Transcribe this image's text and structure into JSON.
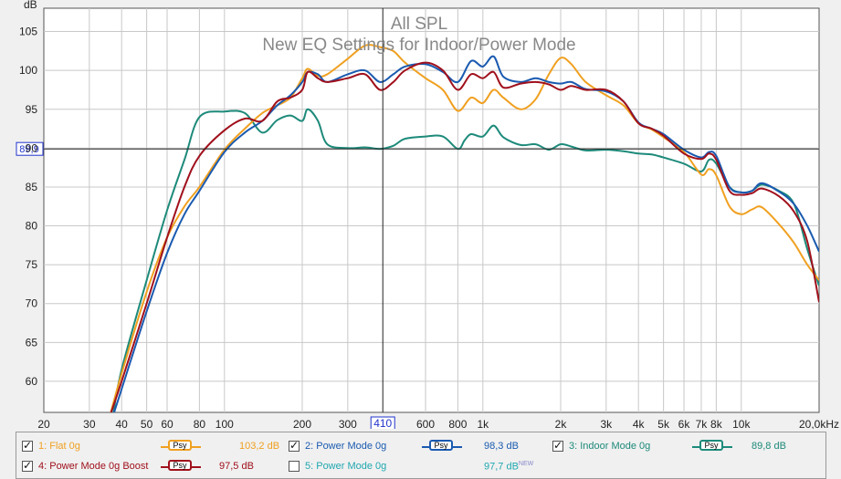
{
  "chart_data": {
    "type": "line",
    "title": "All SPL",
    "subtitle": "New EQ Settings for Indoor/Power Mode",
    "ylabel": "dB",
    "xlabel": "Hz",
    "xscale": "log",
    "xlim": [
      20,
      20000
    ],
    "ylim": [
      56,
      108
    ],
    "x_ticks": [
      {
        "v": 20,
        "label": "20"
      },
      {
        "v": 30,
        "label": "30"
      },
      {
        "v": 40,
        "label": "40"
      },
      {
        "v": 50,
        "label": "50"
      },
      {
        "v": 60,
        "label": "60"
      },
      {
        "v": 80,
        "label": "80"
      },
      {
        "v": 100,
        "label": "100"
      },
      {
        "v": 200,
        "label": "200"
      },
      {
        "v": 300,
        "label": "300"
      },
      {
        "v": 600,
        "label": "600"
      },
      {
        "v": 800,
        "label": "800"
      },
      {
        "v": 1000,
        "label": "1k"
      },
      {
        "v": 2000,
        "label": "2k"
      },
      {
        "v": 3000,
        "label": "3k"
      },
      {
        "v": 4000,
        "label": "4k"
      },
      {
        "v": 5000,
        "label": "5k"
      },
      {
        "v": 6000,
        "label": "6k"
      },
      {
        "v": 7000,
        "label": "7k"
      },
      {
        "v": 8000,
        "label": "8k"
      },
      {
        "v": 10000,
        "label": "10k"
      },
      {
        "v": 20000,
        "label": "20,0kHz"
      }
    ],
    "y_ticks": [
      60,
      65,
      70,
      75,
      80,
      85,
      90,
      95,
      100,
      105
    ],
    "cursor": {
      "x": 410,
      "x_label": "410",
      "y": 89.9,
      "y_label": "89,9"
    },
    "series": [
      {
        "name": "1: Flat 0g",
        "color": "#f0a020",
        "x": [
          36,
          40,
          50,
          60,
          70,
          80,
          100,
          120,
          140,
          160,
          180,
          200,
          210,
          230,
          250,
          300,
          350,
          400,
          450,
          500,
          600,
          700,
          800,
          900,
          1000,
          1100,
          1200,
          1400,
          1600,
          1800,
          2000,
          2200,
          2500,
          3000,
          3500,
          4000,
          4500,
          5000,
          6000,
          7000,
          7500,
          8000,
          9000,
          10000,
          11000,
          12000,
          14000,
          16000,
          18000,
          20000
        ],
        "y": [
          55.5,
          61,
          71.5,
          78.5,
          82.5,
          85,
          89.8,
          92.5,
          94.5,
          95.5,
          96.5,
          99,
          100.2,
          99.3,
          99.5,
          101.5,
          103.2,
          103,
          102.5,
          101,
          99,
          97.5,
          94.8,
          96.5,
          95.8,
          97.5,
          96.5,
          95,
          96.3,
          99.5,
          101.6,
          100.8,
          98.5,
          96.8,
          95.5,
          93.2,
          92.4,
          91.4,
          89.5,
          86.6,
          87.3,
          86.5,
          82.5,
          81.5,
          82.1,
          82.4,
          80.2,
          77.8,
          75,
          73
        ]
      },
      {
        "name": "2: Power Mode 0g",
        "color": "#1a5ab0",
        "x": [
          37,
          40,
          50,
          60,
          70,
          80,
          100,
          120,
          140,
          160,
          180,
          200,
          210,
          230,
          250,
          300,
          350,
          400,
          450,
          500,
          600,
          700,
          800,
          900,
          1000,
          1100,
          1200,
          1400,
          1600,
          1800,
          2000,
          2200,
          2500,
          3000,
          3500,
          4000,
          4500,
          5000,
          6000,
          7000,
          7500,
          8000,
          9000,
          10000,
          11000,
          12000,
          14000,
          16000,
          18000,
          20000
        ],
        "y": [
          55.5,
          59,
          69,
          76.5,
          81.5,
          84.5,
          89.5,
          92,
          93.5,
          95.5,
          96.8,
          98.5,
          99.8,
          99.5,
          98.5,
          99.5,
          100,
          98.5,
          99.5,
          100.5,
          100.8,
          99.8,
          98.5,
          101.2,
          100.5,
          101.8,
          99.2,
          98.5,
          99,
          98.5,
          98.3,
          98.5,
          97.6,
          97.3,
          96,
          93.3,
          92.5,
          91.8,
          89.8,
          88.8,
          89.5,
          89,
          85,
          84.3,
          84.5,
          85.5,
          84.4,
          82.8,
          80,
          76.7
        ]
      },
      {
        "name": "3: Indoor Mode 0g",
        "color": "#1d8a7a",
        "x": [
          37,
          40,
          50,
          60,
          70,
          80,
          100,
          120,
          140,
          160,
          180,
          200,
          210,
          230,
          250,
          300,
          350,
          400,
          450,
          500,
          600,
          700,
          800,
          850,
          900,
          1000,
          1100,
          1200,
          1400,
          1600,
          1800,
          2000,
          2200,
          2500,
          3000,
          3500,
          4000,
          4500,
          5000,
          6000,
          7000,
          7500,
          8000,
          9000,
          10000,
          11000,
          12000,
          14000,
          16000,
          18000,
          20000
        ],
        "y": [
          55.5,
          61.5,
          73,
          82,
          88.5,
          94,
          94.7,
          94.5,
          92,
          93.6,
          94.2,
          93.5,
          95,
          93.5,
          90.5,
          90,
          90.1,
          89.9,
          90.3,
          91.2,
          91.5,
          91.5,
          89.9,
          91,
          91.8,
          91.5,
          92.9,
          91.4,
          90.4,
          90.5,
          89.8,
          90.5,
          90.2,
          89.7,
          89.8,
          89.6,
          89.3,
          89.2,
          88.8,
          88,
          87,
          88.5,
          88,
          85,
          84.3,
          84.5,
          85.3,
          84.5,
          82.8,
          77,
          72.3
        ]
      },
      {
        "name": "4: Power Mode 0g Boost",
        "color": "#a0101c",
        "x": [
          36,
          40,
          50,
          60,
          70,
          80,
          100,
          120,
          140,
          160,
          180,
          200,
          210,
          230,
          250,
          300,
          350,
          400,
          450,
          500,
          600,
          700,
          800,
          900,
          1000,
          1100,
          1200,
          1400,
          1600,
          1800,
          2000,
          2200,
          2500,
          3000,
          3500,
          4000,
          4500,
          5000,
          6000,
          7000,
          7500,
          8000,
          9000,
          10000,
          11000,
          12000,
          14000,
          16000,
          18000,
          20000
        ],
        "y": [
          55.5,
          60,
          70,
          78.5,
          85,
          89,
          92.3,
          93.8,
          93.5,
          96,
          96.5,
          97.5,
          99.8,
          99,
          98.5,
          99,
          99.5,
          97.5,
          98.5,
          100,
          101,
          100,
          97.5,
          99.5,
          99,
          99.8,
          97.8,
          98.3,
          98.5,
          98.2,
          97.5,
          98,
          97.5,
          97.5,
          96,
          93.2,
          92.5,
          91.6,
          89.3,
          88.6,
          89.3,
          88.5,
          84.5,
          84,
          84.2,
          84.8,
          83.8,
          81.8,
          78,
          70.2
        ]
      }
    ]
  },
  "legend": [
    {
      "label": "1: Flat 0g",
      "checked": true,
      "psy": "Psy",
      "value": "103,2 dB",
      "color": "#f0a020",
      "new": ""
    },
    {
      "label": "2: Power Mode 0g",
      "checked": true,
      "psy": "Psy",
      "value": "98,3 dB",
      "color": "#1a5ab0",
      "new": ""
    },
    {
      "label": "3: Indoor Mode 0g",
      "checked": true,
      "psy": "Psy",
      "value": "89,8 dB",
      "color": "#1d8a7a",
      "new": ""
    },
    {
      "label": "4: Power Mode 0g Boost",
      "checked": true,
      "psy": "Psy",
      "value": "97,5 dB",
      "color": "#a0101c",
      "new": ""
    },
    {
      "label": "5: Power Mode 0g",
      "checked": false,
      "psy": "",
      "value": "97,7 dB",
      "color": "#20a8b0",
      "new": "NEW"
    }
  ]
}
